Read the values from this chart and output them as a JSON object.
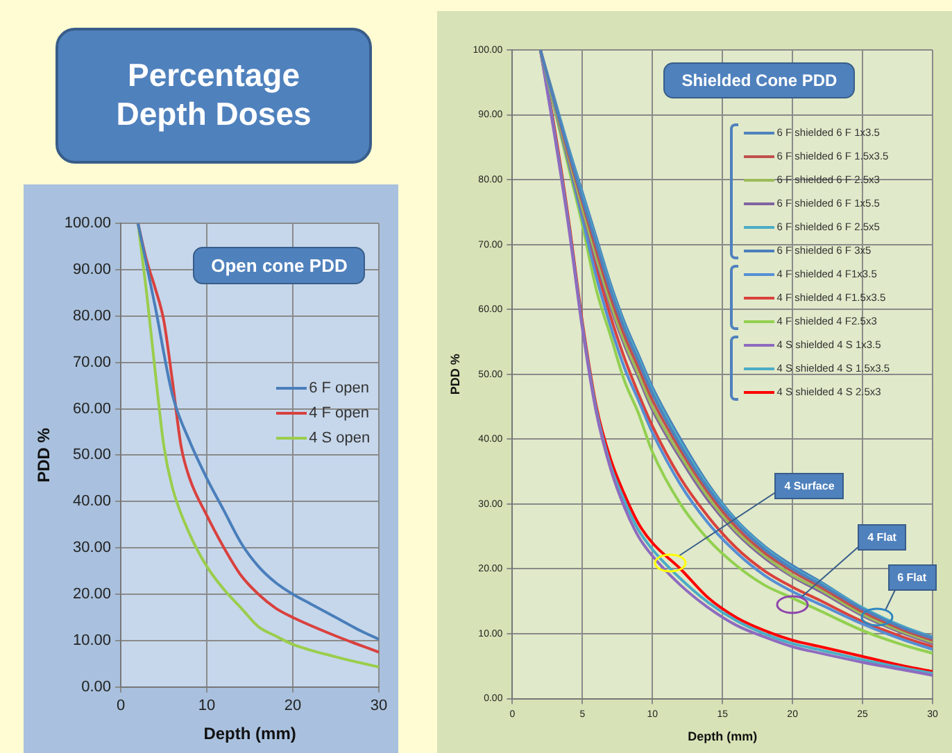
{
  "chart_data": [
    {
      "type": "other",
      "title": "Percentage Depth Doses"
    },
    {
      "type": "line",
      "title": "Open cone PDD",
      "xlabel": "Depth (mm)",
      "ylabel": "PDD %",
      "xlim": [
        0,
        30
      ],
      "xticks": [
        0,
        10,
        20,
        30
      ],
      "ylim": [
        0,
        100
      ],
      "yticks": [
        {
          "value": 0,
          "label": "0.00"
        },
        {
          "value": 10,
          "label": "10.00"
        },
        {
          "value": 20,
          "label": "20.00"
        },
        {
          "value": 30,
          "label": "30.00"
        },
        {
          "value": 40,
          "label": "40.00"
        },
        {
          "value": 50,
          "label": "50.00"
        },
        {
          "value": 60,
          "label": "60.00"
        },
        {
          "value": 70,
          "label": "70.00"
        },
        {
          "value": 80,
          "label": "80.00"
        },
        {
          "value": 90,
          "label": "90.00"
        },
        {
          "value": 100,
          "label": "100.00"
        }
      ],
      "grid": true,
      "legend": "right",
      "marker": "none",
      "series": [
        {
          "name": "6 F open",
          "color": "#4a7ebb",
          "x": [
            2,
            4,
            6,
            8,
            10,
            12,
            14,
            16,
            18,
            20,
            22,
            25,
            28,
            30
          ],
          "values": [
            100,
            82,
            63,
            53,
            45,
            38,
            31,
            26,
            22.5,
            20,
            18,
            15,
            12,
            10.3
          ]
        },
        {
          "name": "4 F open",
          "color": "#d9413e",
          "x": [
            2,
            3,
            4,
            5,
            6,
            7,
            8,
            10,
            12,
            14,
            16,
            18,
            20,
            25,
            30
          ],
          "values": [
            100,
            92,
            86,
            79,
            66,
            52,
            45,
            37,
            30,
            24,
            20,
            17,
            15,
            11,
            7.5
          ]
        },
        {
          "name": "4 S open",
          "color": "#9acd4c",
          "x": [
            2,
            3,
            4,
            5,
            6,
            8,
            10,
            12,
            14,
            16,
            18,
            20,
            25,
            30
          ],
          "values": [
            100,
            85,
            68,
            52,
            43,
            33,
            26,
            21,
            17,
            13,
            11,
            9.2,
            6.5,
            4.3
          ]
        }
      ]
    },
    {
      "type": "line",
      "title": "Shielded Cone PDD",
      "xlabel": "Depth (mm)",
      "ylabel": "PDD %",
      "xlim": [
        0,
        30
      ],
      "xticks": [
        0,
        5,
        10,
        15,
        20,
        25,
        30
      ],
      "ylim": [
        0,
        100
      ],
      "yticks": [
        {
          "value": 0,
          "label": "0.00"
        },
        {
          "value": 10,
          "label": "10.00"
        },
        {
          "value": 20,
          "label": "20.00"
        },
        {
          "value": 30,
          "label": "30.00"
        },
        {
          "value": 40,
          "label": "40.00"
        },
        {
          "value": 50,
          "label": "50.00"
        },
        {
          "value": 60,
          "label": "60.00"
        },
        {
          "value": 70,
          "label": "70.00"
        },
        {
          "value": 80,
          "label": "80.00"
        },
        {
          "value": 90,
          "label": "90.00"
        },
        {
          "value": 100,
          "label": "100.00"
        }
      ],
      "grid": true,
      "legend": "top right",
      "marker": "none",
      "x": [
        2,
        3,
        4,
        5,
        6,
        7,
        8,
        9,
        10,
        12,
        14,
        16,
        18,
        20,
        22,
        25,
        28,
        30
      ],
      "series": [
        {
          "name": "6 F shielded 6 F 1x3.5",
          "color": "#4f81bd",
          "values": [
            100,
            92,
            84.5,
            77,
            70,
            63,
            57,
            52,
            47,
            39,
            32.3,
            27,
            23,
            20,
            17.6,
            13.8,
            10.8,
            9.3
          ]
        },
        {
          "name": "6 F shielded 6 F 1.5x3.5",
          "color": "#c0504d",
          "values": [
            100,
            92,
            84,
            76.5,
            69,
            62,
            56,
            51,
            46,
            38.3,
            31.7,
            26.4,
            22.5,
            19.6,
            17.2,
            13.4,
            10.5,
            9
          ]
        },
        {
          "name": "6 F shielded 6 F 2.5x3",
          "color": "#9bbb59",
          "values": [
            100,
            91.5,
            83.5,
            75.5,
            68,
            61,
            55,
            50,
            45,
            37.5,
            31,
            25.8,
            22,
            19,
            16.8,
            13,
            10.2,
            8.7
          ]
        },
        {
          "name": "6 F shielded 6 F 1x5.5",
          "color": "#8064a2",
          "values": [
            100,
            91.5,
            83,
            75,
            67.5,
            60.5,
            54.5,
            49.5,
            44.5,
            37,
            30.5,
            25.5,
            21.7,
            18.8,
            16.5,
            12.8,
            10,
            8.5
          ]
        },
        {
          "name": "6 F shielded 6 F 2.5x5",
          "color": "#4bacc6",
          "values": [
            100,
            92.3,
            84.8,
            77.5,
            70.5,
            63.5,
            57.5,
            52.5,
            47.5,
            39.5,
            32.7,
            27.3,
            23.3,
            20.2,
            17.8,
            14,
            11,
            9.4
          ]
        },
        {
          "name": "6 F shielded 6 F 3x5",
          "color": "#4a7ebb",
          "values": [
            100,
            92.5,
            85,
            78,
            71,
            64,
            58,
            53,
            48,
            40,
            33,
            27.5,
            23.5,
            20.5,
            18,
            14,
            11,
            9.5
          ]
        },
        {
          "name": "4 F shielded 4 F1x3.5",
          "color": "#558ed5",
          "values": [
            100,
            91.3,
            82.8,
            74,
            65,
            57.5,
            51,
            46,
            41,
            33,
            27,
            22.5,
            19,
            16.5,
            14.5,
            11.5,
            9,
            7.6
          ]
        },
        {
          "name": "4 F shielded 4 F1.5x3.5",
          "color": "#d9413e",
          "values": [
            100,
            91.5,
            83.5,
            75,
            66.5,
            59,
            52.5,
            47,
            42,
            34,
            28,
            23.2,
            19.7,
            17.2,
            15.1,
            11.9,
            9.4,
            8
          ]
        },
        {
          "name": "4 F shielded 4 F2.5x3",
          "color": "#92d050",
          "values": [
            100,
            91,
            82,
            73,
            63,
            56,
            49,
            44,
            38,
            30,
            24.5,
            20.5,
            17.5,
            15.5,
            13.5,
            10.5,
            8.2,
            7
          ]
        },
        {
          "name": "4 S shielded 4 S 1x3.5",
          "color": "#8e6bbf",
          "values": [
            100,
            87,
            73,
            57,
            44,
            35.5,
            29.5,
            25,
            22,
            17.5,
            14,
            11.3,
            9.5,
            8,
            7,
            5.6,
            4.4,
            3.6
          ]
        },
        {
          "name": "4 S shielded 4 S 1.5x3.5",
          "color": "#4bacc6",
          "values": [
            100,
            87.5,
            73.5,
            57.5,
            44.5,
            36,
            30.5,
            26,
            23,
            18.5,
            14.8,
            12,
            10,
            8.5,
            7.5,
            6,
            4.7,
            3.9
          ]
        },
        {
          "name": "4 S shielded 4 S 2.5x3",
          "color": "#ff0000",
          "values": [
            100,
            88,
            74,
            58,
            45,
            37,
            31.5,
            27,
            24,
            20,
            15.5,
            12.5,
            10.5,
            9,
            8,
            6.5,
            5,
            4.2
          ]
        }
      ],
      "annotations": [
        {
          "text": "4 Surface",
          "x": 11.3,
          "y": 21
        },
        {
          "text": "4 Flat",
          "x": 20,
          "y": 14.5
        },
        {
          "text": "6 Flat",
          "x": 26,
          "y": 12.5
        }
      ]
    }
  ]
}
